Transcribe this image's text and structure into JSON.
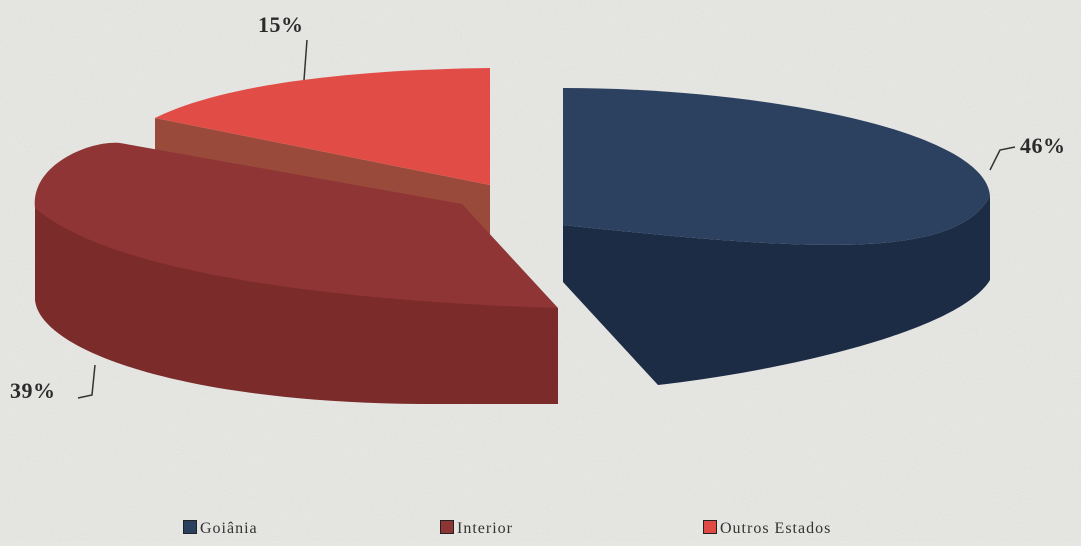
{
  "chart_data": {
    "type": "pie",
    "title": "",
    "series": [
      {
        "name": "Goiânia",
        "value": 46,
        "label": "46%",
        "color": "#2b3f5e",
        "side_color": "#1d2c44"
      },
      {
        "name": "Interior",
        "value": 39,
        "label": "39%",
        "color": "#8d3434",
        "side_color": "#7a2a2a"
      },
      {
        "name": "Outros Estados",
        "value": 15,
        "label": "15%",
        "color": "#e04a45",
        "side_color": "#9e4a3c"
      }
    ],
    "style": "3d-exploded",
    "legend_position": "bottom"
  }
}
